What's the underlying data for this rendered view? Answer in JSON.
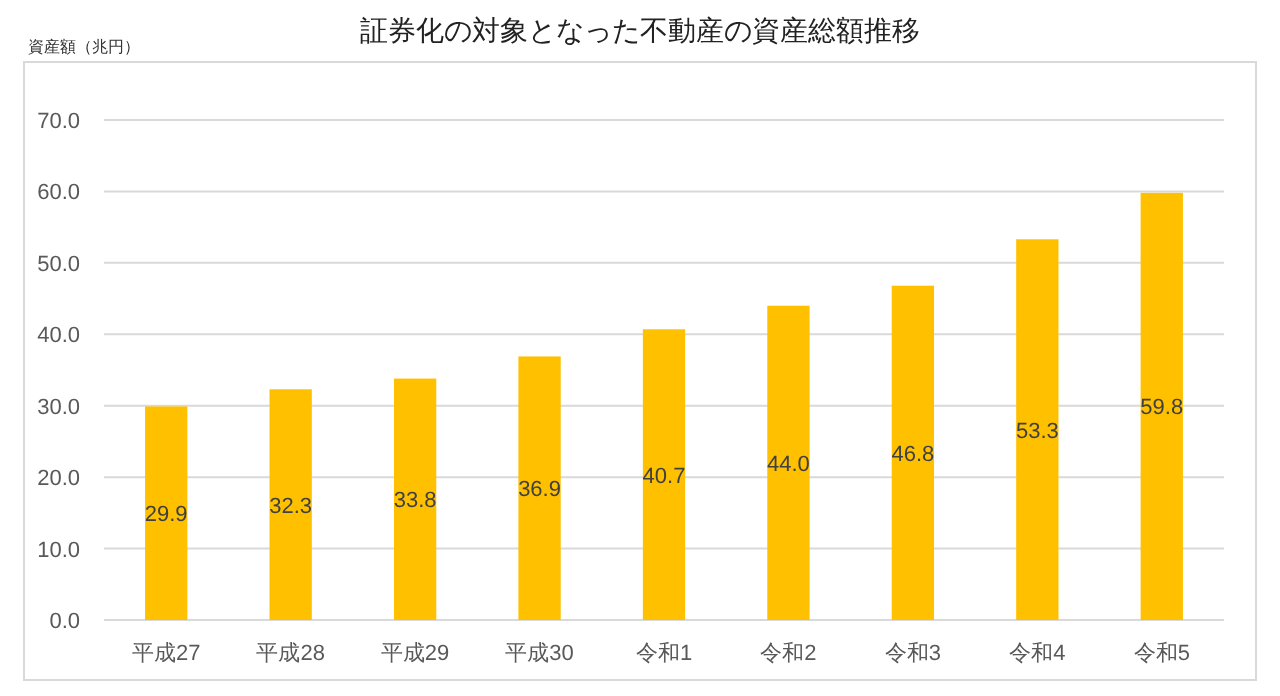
{
  "chart_data": {
    "type": "bar",
    "title": "証券化の対象となった不動産の資産総額推移",
    "ylabel": "資産額（兆円）",
    "categories": [
      "平成27",
      "平成28",
      "平成29",
      "平成30",
      "令和1",
      "令和2",
      "令和3",
      "令和4",
      "令和5"
    ],
    "values": [
      29.9,
      32.3,
      33.8,
      36.9,
      40.7,
      44.0,
      46.8,
      53.3,
      59.8
    ],
    "value_labels": [
      "29.9",
      "32.3",
      "33.8",
      "36.9",
      "40.7",
      "44.0",
      "46.8",
      "53.3",
      "59.8"
    ],
    "color": "#ffc000",
    "ylim": [
      0,
      70
    ],
    "yticks": [
      {
        "value": 0,
        "label": "0.0"
      },
      {
        "value": 10,
        "label": "10.0"
      },
      {
        "value": 20,
        "label": "20.0"
      },
      {
        "value": 30,
        "label": "30.0"
      },
      {
        "value": 40,
        "label": "40.0"
      },
      {
        "value": 50,
        "label": "50.0"
      },
      {
        "value": 60,
        "label": "60.0"
      },
      {
        "value": 70,
        "label": "70.0"
      }
    ],
    "grid": "y"
  }
}
